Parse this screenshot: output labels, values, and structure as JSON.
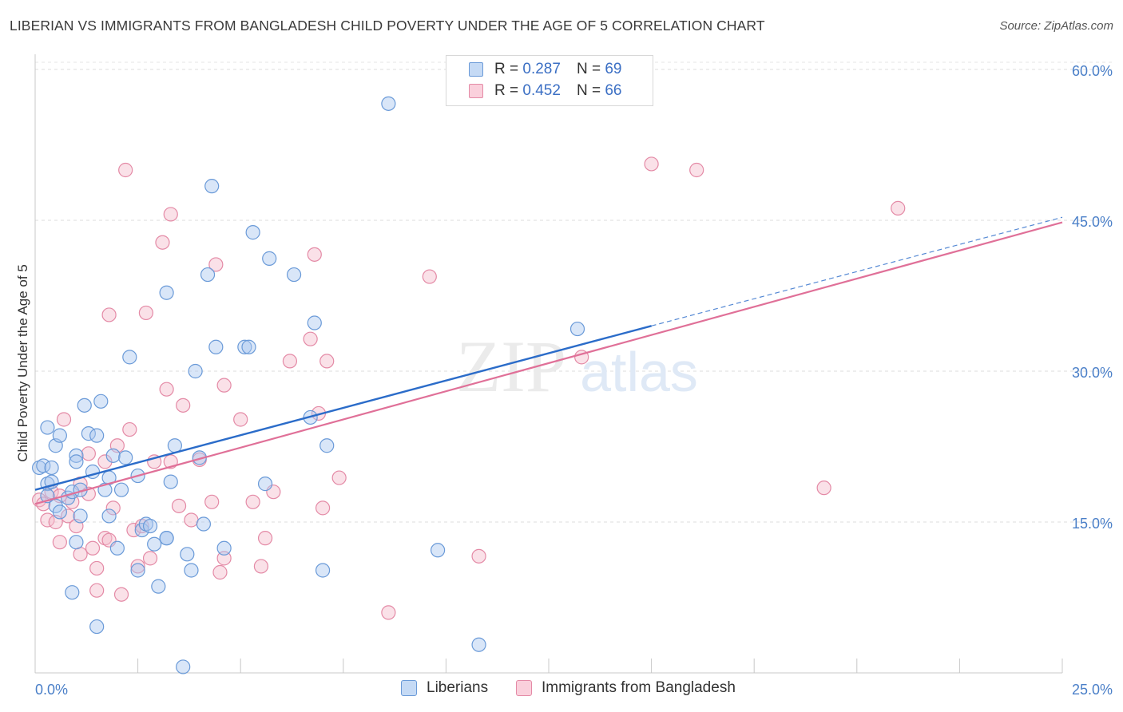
{
  "title": "LIBERIAN VS IMMIGRANTS FROM BANGLADESH CHILD POVERTY UNDER THE AGE OF 5 CORRELATION CHART",
  "source": "Source: ZipAtlas.com",
  "watermark": {
    "zip": "ZIP",
    "atlas": "atlas"
  },
  "legend": {
    "rows": [
      {
        "r_label": "R =",
        "r_value": "0.287",
        "n_label": "N =",
        "n_value": "69"
      },
      {
        "r_label": "R =",
        "r_value": "0.452",
        "n_label": "N =",
        "n_value": "66"
      }
    ]
  },
  "chart_data": {
    "type": "scatter",
    "title": "LIBERIAN VS IMMIGRANTS FROM BANGLADESH CHILD POVERTY UNDER THE AGE OF 5 CORRELATION CHART",
    "xlabel": "",
    "ylabel": "Child Poverty Under the Age of 5",
    "xlim": [
      0,
      25
    ],
    "ylim": [
      0,
      60
    ],
    "x_tick_labels": [
      "0.0%",
      "25.0%"
    ],
    "y_ticks": [
      15,
      30,
      45,
      60
    ],
    "y_tick_labels": [
      "15.0%",
      "30.0%",
      "45.0%",
      "60.0%"
    ],
    "grid": true,
    "legend_position": "top-center",
    "colors": {
      "liberians_fill": "#aac8f0",
      "liberians_stroke": "#6a9ad8",
      "liberians_line": "#2b6cc9",
      "bangladesh_fill": "#f5bccd",
      "bangladesh_stroke": "#e48aa6",
      "bangladesh_line": "#e07098"
    },
    "series": [
      {
        "name": "Liberians",
        "r": 0.287,
        "n": 69,
        "trend": {
          "x": [
            0,
            15
          ],
          "y": [
            18.2,
            34.5
          ]
        },
        "trend_extension": {
          "x": [
            15,
            25
          ],
          "y": [
            34.5,
            45.3
          ]
        },
        "points": [
          [
            0.1,
            20.4
          ],
          [
            0.2,
            20.6
          ],
          [
            0.3,
            18.8
          ],
          [
            0.3,
            17.6
          ],
          [
            0.4,
            19.0
          ],
          [
            0.5,
            16.6
          ],
          [
            0.3,
            24.4
          ],
          [
            0.5,
            22.6
          ],
          [
            0.6,
            23.6
          ],
          [
            0.6,
            16.0
          ],
          [
            0.8,
            17.4
          ],
          [
            0.9,
            18.0
          ],
          [
            1.0,
            21.6
          ],
          [
            1.0,
            21.0
          ],
          [
            1.1,
            18.2
          ],
          [
            1.1,
            15.6
          ],
          [
            1.2,
            26.6
          ],
          [
            1.3,
            23.8
          ],
          [
            1.4,
            20.0
          ],
          [
            1.5,
            23.6
          ],
          [
            1.6,
            27.0
          ],
          [
            1.7,
            18.2
          ],
          [
            1.8,
            15.6
          ],
          [
            1.9,
            21.6
          ],
          [
            2.0,
            12.4
          ],
          [
            2.1,
            18.2
          ],
          [
            2.2,
            21.4
          ],
          [
            2.3,
            31.4
          ],
          [
            2.5,
            19.6
          ],
          [
            2.6,
            14.2
          ],
          [
            2.7,
            14.8
          ],
          [
            2.8,
            14.6
          ],
          [
            2.9,
            12.8
          ],
          [
            3.0,
            8.6
          ],
          [
            3.2,
            37.8
          ],
          [
            3.2,
            13.4
          ],
          [
            3.3,
            19.0
          ],
          [
            3.4,
            22.6
          ],
          [
            3.6,
            0.6
          ],
          [
            3.7,
            11.8
          ],
          [
            3.8,
            10.2
          ],
          [
            3.9,
            30.0
          ],
          [
            4.0,
            21.4
          ],
          [
            4.1,
            14.8
          ],
          [
            4.2,
            39.6
          ],
          [
            4.3,
            48.4
          ],
          [
            4.4,
            32.4
          ],
          [
            4.6,
            12.4
          ],
          [
            5.1,
            32.4
          ],
          [
            5.2,
            32.4
          ],
          [
            5.3,
            43.8
          ],
          [
            5.6,
            18.8
          ],
          [
            5.7,
            41.2
          ],
          [
            6.3,
            39.6
          ],
          [
            6.7,
            25.4
          ],
          [
            6.8,
            34.8
          ],
          [
            7.0,
            10.2
          ],
          [
            7.1,
            22.6
          ],
          [
            8.6,
            56.6
          ],
          [
            9.8,
            12.2
          ],
          [
            10.8,
            2.8
          ],
          [
            13.2,
            34.2
          ],
          [
            0.9,
            8.0
          ],
          [
            1.5,
            4.6
          ],
          [
            2.5,
            10.2
          ],
          [
            0.4,
            20.4
          ],
          [
            1.8,
            19.4
          ],
          [
            3.2,
            13.4
          ],
          [
            1.0,
            13.0
          ]
        ]
      },
      {
        "name": "Immigrants from Bangladesh",
        "r": 0.452,
        "n": 66,
        "trend": {
          "x": [
            0,
            25
          ],
          "y": [
            16.8,
            44.8
          ]
        },
        "points": [
          [
            0.1,
            17.2
          ],
          [
            0.2,
            16.8
          ],
          [
            0.3,
            15.2
          ],
          [
            0.4,
            18.0
          ],
          [
            0.5,
            15.0
          ],
          [
            0.6,
            17.6
          ],
          [
            0.6,
            13.0
          ],
          [
            0.7,
            25.2
          ],
          [
            0.8,
            15.6
          ],
          [
            0.9,
            17.0
          ],
          [
            1.0,
            14.6
          ],
          [
            1.1,
            18.8
          ],
          [
            1.1,
            11.8
          ],
          [
            1.3,
            21.8
          ],
          [
            1.3,
            17.8
          ],
          [
            1.4,
            12.4
          ],
          [
            1.5,
            8.2
          ],
          [
            1.5,
            10.4
          ],
          [
            1.7,
            13.4
          ],
          [
            1.8,
            35.6
          ],
          [
            1.8,
            13.2
          ],
          [
            1.9,
            16.4
          ],
          [
            2.0,
            22.6
          ],
          [
            2.1,
            7.8
          ],
          [
            2.2,
            50.0
          ],
          [
            2.3,
            24.2
          ],
          [
            2.4,
            14.2
          ],
          [
            2.5,
            10.6
          ],
          [
            2.6,
            14.6
          ],
          [
            2.7,
            35.8
          ],
          [
            2.8,
            11.4
          ],
          [
            2.9,
            21.0
          ],
          [
            3.1,
            42.8
          ],
          [
            3.2,
            28.2
          ],
          [
            3.3,
            21.0
          ],
          [
            3.3,
            45.6
          ],
          [
            3.5,
            16.6
          ],
          [
            3.6,
            26.6
          ],
          [
            3.8,
            15.2
          ],
          [
            4.0,
            21.2
          ],
          [
            4.3,
            17.0
          ],
          [
            4.4,
            40.6
          ],
          [
            4.5,
            10.0
          ],
          [
            4.6,
            28.6
          ],
          [
            5.0,
            25.2
          ],
          [
            5.3,
            17.0
          ],
          [
            5.5,
            10.6
          ],
          [
            5.6,
            13.4
          ],
          [
            5.8,
            18.0
          ],
          [
            6.2,
            31.0
          ],
          [
            6.7,
            33.2
          ],
          [
            6.8,
            41.6
          ],
          [
            6.9,
            25.8
          ],
          [
            7.0,
            16.4
          ],
          [
            7.1,
            31.0
          ],
          [
            7.4,
            19.4
          ],
          [
            8.6,
            6.0
          ],
          [
            9.6,
            39.4
          ],
          [
            10.8,
            11.6
          ],
          [
            13.3,
            31.4
          ],
          [
            15.0,
            50.6
          ],
          [
            16.1,
            50.0
          ],
          [
            19.2,
            18.4
          ],
          [
            21.0,
            46.2
          ],
          [
            4.6,
            11.4
          ],
          [
            1.7,
            21.0
          ]
        ]
      }
    ]
  },
  "bottom_legend": [
    {
      "label": "Liberians"
    },
    {
      "label": "Immigrants from Bangladesh"
    }
  ]
}
